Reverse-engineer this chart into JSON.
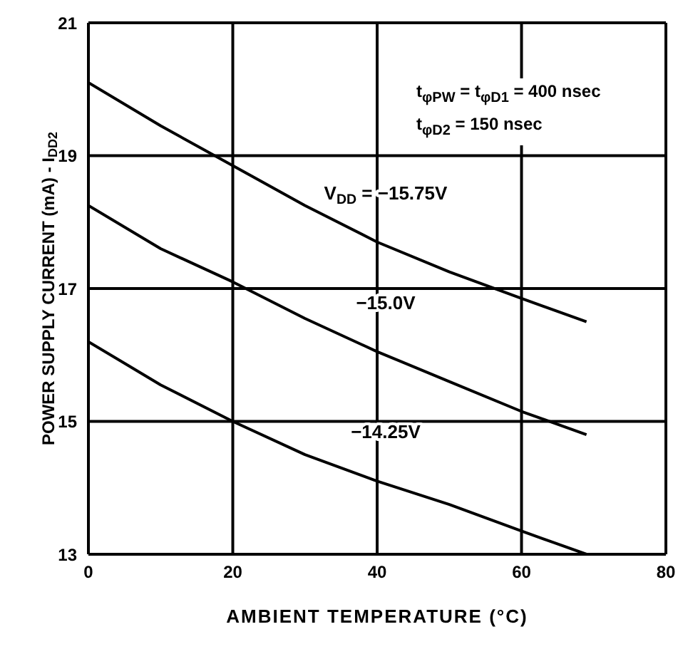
{
  "chart_data": {
    "type": "line",
    "xlabel": "AMBIENT TEMPERATURE (°C)",
    "ylabel": "POWER SUPPLY CURRENT (mA) - I$_{DD2}$",
    "annotations": [
      "t$_{φPW}$ = t$_{φD1}$ = 400 nsec",
      "t$_{φD2}$ = 150 nsec"
    ],
    "x": [
      0,
      10,
      20,
      30,
      40,
      50,
      60,
      69
    ],
    "series": [
      {
        "name": "V$_{DD}$ = −15.75V",
        "color": "#000000",
        "values": [
          20.1,
          19.45,
          18.85,
          18.25,
          17.7,
          17.25,
          16.85,
          16.5
        ]
      },
      {
        "name": "−15.0V",
        "color": "#000000",
        "values": [
          18.25,
          17.6,
          17.1,
          16.55,
          16.05,
          15.6,
          15.15,
          14.8
        ]
      },
      {
        "name": "−14.25V",
        "color": "#000000",
        "values": [
          16.2,
          15.55,
          15.0,
          14.5,
          14.1,
          13.75,
          13.35,
          13.0
        ]
      }
    ],
    "xlim": [
      0,
      80
    ],
    "xticks": [
      0,
      20,
      40,
      60,
      80
    ],
    "ylim": [
      13,
      21
    ],
    "yticks": [
      13,
      15,
      17,
      19,
      21
    ],
    "grid": true,
    "marker": "none",
    "line_style": "solid"
  }
}
